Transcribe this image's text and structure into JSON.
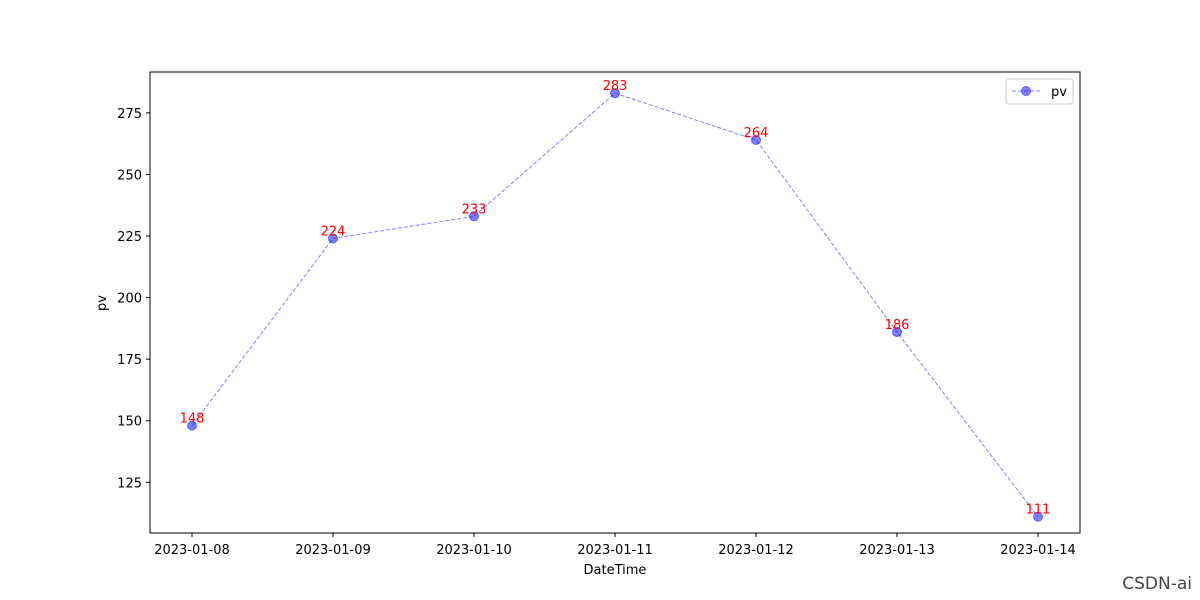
{
  "chart_data": {
    "type": "line",
    "x": [
      "2023-01-08",
      "2023-01-09",
      "2023-01-10",
      "2023-01-11",
      "2023-01-12",
      "2023-01-13",
      "2023-01-14"
    ],
    "series": [
      {
        "name": "pv",
        "values": [
          148,
          224,
          233,
          283,
          264,
          186,
          111
        ],
        "color": "#0000ff",
        "label_color": "#ff0000",
        "line_style": "dashed",
        "marker": "circle"
      }
    ],
    "xlabel": "DateTime",
    "ylabel": "pv",
    "yticks": [
      125,
      150,
      175,
      200,
      225,
      250,
      275
    ],
    "ylim": [
      104.4,
      291.6
    ],
    "legend_position": "upper right",
    "grid": false
  },
  "watermark": "CSDN-ai"
}
